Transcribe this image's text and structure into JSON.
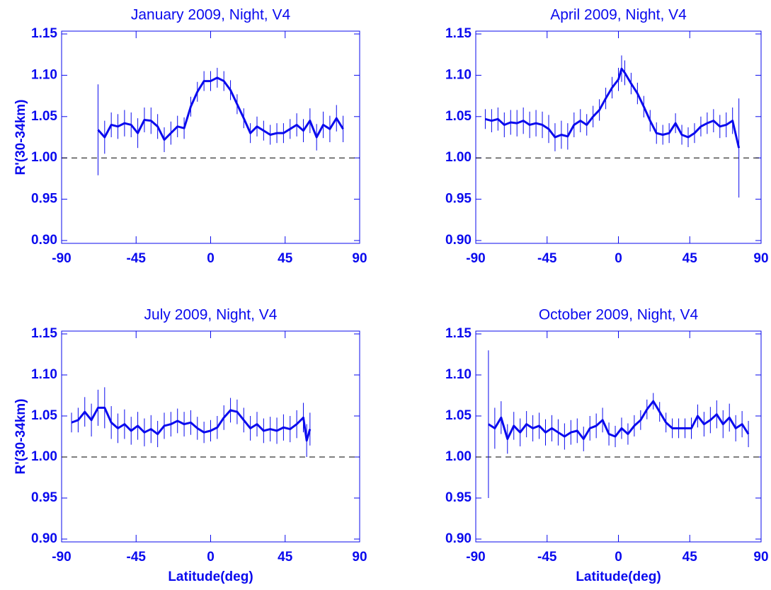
{
  "chart_data": [
    {
      "type": "line",
      "title": "January 2009, Night, V4",
      "ylabel": "R'(30-34km)",
      "color": "#0a0aee",
      "reference_line": 1,
      "xlim": [
        -90,
        90
      ],
      "xticks": [
        -90,
        -45,
        0,
        45,
        90
      ],
      "ylim": [
        0.9,
        1.15
      ],
      "yticks": [
        {
          "value": 0.9,
          "label": "0.90"
        },
        0.95,
        {
          "value": 1,
          "label": "1.00"
        },
        1.05,
        {
          "value": 1.1,
          "label": "1.10"
        },
        1.15
      ],
      "series": [
        {
          "x": [
            -68,
            -64,
            -60,
            -56,
            -52,
            -48,
            -44,
            -40,
            -36,
            -32,
            -28,
            -24,
            -20,
            -16,
            -12,
            -8,
            -4,
            0,
            4,
            8,
            12,
            16,
            20,
            24,
            28,
            32,
            36,
            40,
            44,
            48,
            52,
            56,
            60,
            64,
            68,
            72,
            76,
            80
          ],
          "values": [
            1.034,
            1.025,
            1.04,
            1.038,
            1.042,
            1.04,
            1.03,
            1.046,
            1.045,
            1.038,
            1.022,
            1.03,
            1.038,
            1.036,
            1.062,
            1.08,
            1.093,
            1.093,
            1.097,
            1.093,
            1.082,
            1.065,
            1.048,
            1.03,
            1.038,
            1.033,
            1.028,
            1.03,
            1.03,
            1.035,
            1.04,
            1.033,
            1.045,
            1.025,
            1.04,
            1.035,
            1.048,
            1.035
          ],
          "errors": [
            0.055,
            0.02,
            0.015,
            0.015,
            0.016,
            0.015,
            0.018,
            0.015,
            0.016,
            0.015,
            0.015,
            0.014,
            0.013,
            0.013,
            0.012,
            0.012,
            0.012,
            0.012,
            0.012,
            0.012,
            0.012,
            0.012,
            0.012,
            0.012,
            0.012,
            0.012,
            0.012,
            0.012,
            0.012,
            0.012,
            0.014,
            0.014,
            0.015,
            0.016,
            0.016,
            0.016,
            0.016,
            0.016
          ]
        }
      ]
    },
    {
      "type": "line",
      "title": "April 2009, Night, V4",
      "color": "#0a0aee",
      "reference_line": 1,
      "xlim": [
        -90,
        90
      ],
      "xticks": [
        -90,
        -45,
        0,
        45,
        90
      ],
      "ylim": [
        0.9,
        1.15
      ],
      "yticks": [
        {
          "value": 0.9,
          "label": "0.90"
        },
        0.95,
        {
          "value": 1,
          "label": "1.00"
        },
        1.05,
        {
          "value": 1.1,
          "label": "1.10"
        },
        1.15
      ],
      "series": [
        {
          "x": [
            -84,
            -80,
            -76,
            -72,
            -68,
            -64,
            -60,
            -56,
            -52,
            -48,
            -44,
            -40,
            -36,
            -32,
            -28,
            -24,
            -20,
            -16,
            -12,
            -8,
            -4,
            0,
            2,
            4,
            8,
            12,
            16,
            20,
            24,
            28,
            32,
            36,
            40,
            44,
            48,
            52,
            56,
            60,
            64,
            68,
            72,
            76
          ],
          "values": [
            1.047,
            1.045,
            1.047,
            1.04,
            1.043,
            1.042,
            1.045,
            1.04,
            1.042,
            1.04,
            1.035,
            1.025,
            1.028,
            1.026,
            1.04,
            1.045,
            1.04,
            1.05,
            1.058,
            1.072,
            1.085,
            1.095,
            1.108,
            1.103,
            1.09,
            1.078,
            1.062,
            1.045,
            1.03,
            1.028,
            1.03,
            1.042,
            1.028,
            1.025,
            1.03,
            1.038,
            1.042,
            1.045,
            1.038,
            1.04,
            1.045,
            1.012
          ],
          "errors": [
            0.012,
            0.014,
            0.014,
            0.015,
            0.015,
            0.016,
            0.016,
            0.016,
            0.016,
            0.016,
            0.017,
            0.017,
            0.017,
            0.016,
            0.015,
            0.014,
            0.013,
            0.013,
            0.013,
            0.013,
            0.013,
            0.014,
            0.016,
            0.015,
            0.013,
            0.013,
            0.013,
            0.013,
            0.013,
            0.012,
            0.012,
            0.012,
            0.012,
            0.012,
            0.012,
            0.012,
            0.013,
            0.014,
            0.014,
            0.015,
            0.016,
            0.06
          ]
        }
      ]
    },
    {
      "type": "line",
      "title": "July 2009, Night, V4",
      "ylabel": "R'(30-34km)",
      "xlabel": "Latitude(deg)",
      "color": "#0a0aee",
      "reference_line": 1,
      "xlim": [
        -90,
        90
      ],
      "xticks": [
        -90,
        -45,
        0,
        45,
        90
      ],
      "ylim": [
        0.9,
        1.15
      ],
      "yticks": [
        {
          "value": 0.9,
          "label": "0.90"
        },
        0.95,
        {
          "value": 1,
          "label": "1.00"
        },
        1.05,
        {
          "value": 1.1,
          "label": "1.10"
        },
        1.15
      ],
      "series": [
        {
          "x": [
            -84,
            -80,
            -76,
            -72,
            -68,
            -64,
            -60,
            -56,
            -52,
            -48,
            -44,
            -40,
            -36,
            -32,
            -28,
            -24,
            -20,
            -16,
            -12,
            -8,
            -4,
            0,
            4,
            8,
            12,
            16,
            20,
            24,
            28,
            32,
            36,
            40,
            44,
            48,
            52,
            56,
            58,
            60
          ],
          "values": [
            1.042,
            1.045,
            1.055,
            1.045,
            1.06,
            1.06,
            1.042,
            1.035,
            1.04,
            1.032,
            1.038,
            1.03,
            1.034,
            1.028,
            1.038,
            1.04,
            1.044,
            1.04,
            1.042,
            1.035,
            1.03,
            1.032,
            1.036,
            1.048,
            1.057,
            1.055,
            1.045,
            1.035,
            1.04,
            1.032,
            1.034,
            1.032,
            1.036,
            1.034,
            1.04,
            1.048,
            1.02,
            1.034
          ],
          "errors": [
            0.012,
            0.015,
            0.018,
            0.02,
            0.022,
            0.025,
            0.02,
            0.018,
            0.018,
            0.017,
            0.017,
            0.017,
            0.017,
            0.016,
            0.016,
            0.015,
            0.015,
            0.015,
            0.015,
            0.014,
            0.013,
            0.013,
            0.014,
            0.015,
            0.015,
            0.015,
            0.015,
            0.015,
            0.015,
            0.015,
            0.015,
            0.016,
            0.016,
            0.016,
            0.017,
            0.018,
            0.02,
            0.02
          ]
        }
      ]
    },
    {
      "type": "line",
      "title": "October 2009, Night, V4",
      "xlabel": "Latitude(deg)",
      "color": "#0a0aee",
      "reference_line": 1,
      "xlim": [
        -90,
        90
      ],
      "xticks": [
        -90,
        -45,
        0,
        45,
        90
      ],
      "ylim": [
        0.9,
        1.15
      ],
      "yticks": [
        {
          "value": 0.9,
          "label": "0.90"
        },
        0.95,
        {
          "value": 1,
          "label": "1.00"
        },
        1.05,
        {
          "value": 1.1,
          "label": "1.10"
        },
        1.15
      ],
      "series": [
        {
          "x": [
            -82,
            -78,
            -74,
            -70,
            -66,
            -62,
            -58,
            -54,
            -50,
            -46,
            -42,
            -38,
            -34,
            -30,
            -26,
            -22,
            -18,
            -14,
            -10,
            -6,
            -2,
            2,
            6,
            10,
            14,
            18,
            22,
            26,
            30,
            34,
            38,
            42,
            46,
            50,
            54,
            58,
            62,
            66,
            70,
            74,
            78,
            82
          ],
          "values": [
            1.04,
            1.035,
            1.048,
            1.022,
            1.038,
            1.03,
            1.04,
            1.035,
            1.038,
            1.03,
            1.035,
            1.03,
            1.025,
            1.03,
            1.032,
            1.022,
            1.035,
            1.038,
            1.045,
            1.028,
            1.025,
            1.035,
            1.028,
            1.038,
            1.045,
            1.058,
            1.068,
            1.055,
            1.042,
            1.035,
            1.035,
            1.035,
            1.035,
            1.05,
            1.04,
            1.045,
            1.052,
            1.04,
            1.048,
            1.035,
            1.04,
            1.028
          ],
          "errors": [
            0.09,
            0.025,
            0.02,
            0.018,
            0.017,
            0.017,
            0.016,
            0.016,
            0.016,
            0.016,
            0.016,
            0.016,
            0.016,
            0.015,
            0.015,
            0.015,
            0.015,
            0.015,
            0.015,
            0.014,
            0.013,
            0.013,
            0.013,
            0.013,
            0.012,
            0.012,
            0.01,
            0.012,
            0.012,
            0.012,
            0.012,
            0.012,
            0.013,
            0.014,
            0.015,
            0.016,
            0.017,
            0.017,
            0.017,
            0.016,
            0.016,
            0.016
          ]
        }
      ]
    }
  ]
}
